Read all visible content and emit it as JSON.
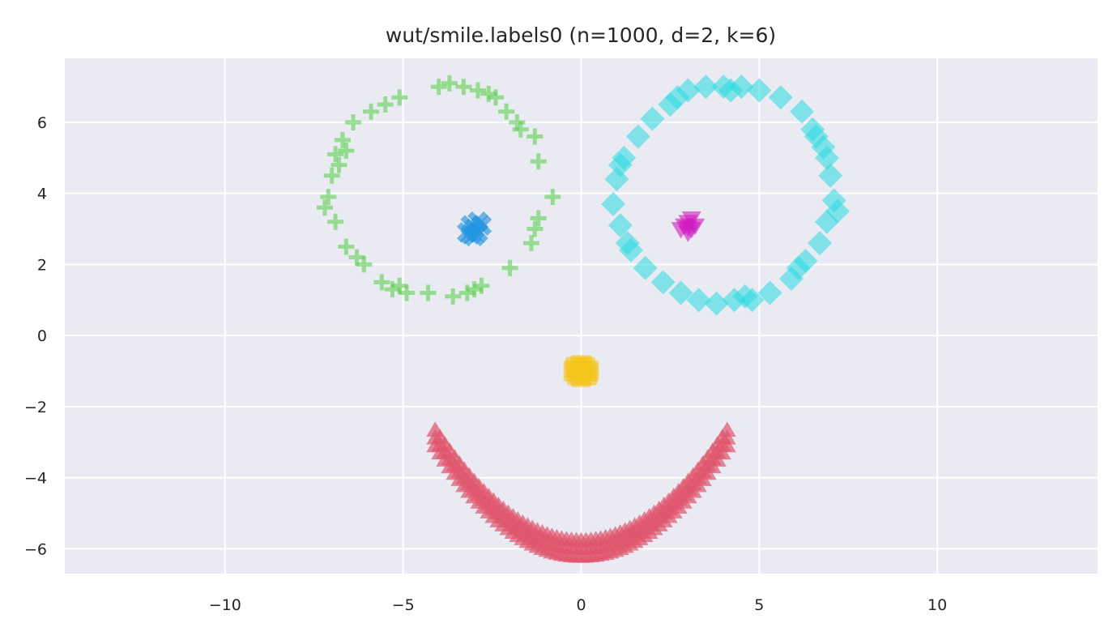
{
  "chart_data": {
    "type": "scatter",
    "title": "wut/smile.labels0 (n=1000, d=2, k=6)",
    "xlabel": "",
    "ylabel": "",
    "xlim": [
      -14.5,
      14.5
    ],
    "ylim": [
      -6.7,
      7.8
    ],
    "xticks": [
      -10,
      -5,
      0,
      5,
      10
    ],
    "yticks": [
      -6,
      -4,
      -2,
      0,
      2,
      4,
      6
    ],
    "xtick_labels": [
      "−10",
      "−5",
      "0",
      "5",
      "10"
    ],
    "ytick_labels": [
      "−6",
      "−4",
      "−2",
      "0",
      "2",
      "4",
      "6"
    ],
    "grid": true,
    "background": "#eaeaf2",
    "series": [
      {
        "marker": "plus",
        "color": "#5bd04e",
        "points": [
          [
            -3.7,
            7.1
          ],
          [
            -3.3,
            7.0
          ],
          [
            -2.9,
            6.9
          ],
          [
            -2.4,
            6.7
          ],
          [
            -2.1,
            6.3
          ],
          [
            -1.8,
            6.0
          ],
          [
            -1.3,
            5.6
          ],
          [
            -1.2,
            4.9
          ],
          [
            -0.8,
            3.9
          ],
          [
            -1.2,
            3.3
          ],
          [
            -1.4,
            2.6
          ],
          [
            -2.0,
            1.9
          ],
          [
            -2.8,
            1.4
          ],
          [
            -3.2,
            1.2
          ],
          [
            -3.6,
            1.1
          ],
          [
            -4.3,
            1.2
          ],
          [
            -4.9,
            1.2
          ],
          [
            -5.1,
            1.4
          ],
          [
            -5.6,
            1.5
          ],
          [
            -6.1,
            2.0
          ],
          [
            -6.6,
            2.5
          ],
          [
            -6.9,
            3.2
          ],
          [
            -7.1,
            3.9
          ],
          [
            -7.0,
            4.5
          ],
          [
            -6.9,
            5.1
          ],
          [
            -6.7,
            5.5
          ],
          [
            -6.4,
            6.0
          ],
          [
            -5.9,
            6.3
          ],
          [
            -5.5,
            6.5
          ],
          [
            -5.1,
            6.7
          ],
          [
            -6.8,
            4.8
          ],
          [
            -7.2,
            3.6
          ],
          [
            -6.3,
            2.2
          ],
          [
            -5.3,
            1.3
          ],
          [
            -3.0,
            1.3
          ],
          [
            -1.7,
            5.8
          ],
          [
            -2.6,
            6.8
          ],
          [
            -4.0,
            7.0
          ],
          [
            -6.6,
            5.2
          ],
          [
            -1.3,
            3.0
          ]
        ]
      },
      {
        "marker": "x",
        "color": "#2495e0",
        "points": [
          [
            -3.1,
            3.1
          ],
          [
            -2.9,
            2.9
          ],
          [
            -3.0,
            3.0
          ],
          [
            -2.8,
            3.1
          ],
          [
            -3.2,
            2.9
          ],
          [
            -3.0,
            2.8
          ],
          [
            -2.9,
            3.2
          ],
          [
            -3.1,
            2.85
          ]
        ]
      },
      {
        "marker": "diamond",
        "color": "#27dbe0",
        "points": [
          [
            3.0,
            6.9
          ],
          [
            3.5,
            7.0
          ],
          [
            4.0,
            7.0
          ],
          [
            4.5,
            7.0
          ],
          [
            5.0,
            6.9
          ],
          [
            5.6,
            6.7
          ],
          [
            6.2,
            6.3
          ],
          [
            6.6,
            5.6
          ],
          [
            6.9,
            5.0
          ],
          [
            7.0,
            4.5
          ],
          [
            7.1,
            3.8
          ],
          [
            6.9,
            3.2
          ],
          [
            6.7,
            2.6
          ],
          [
            6.3,
            2.1
          ],
          [
            5.9,
            1.6
          ],
          [
            5.3,
            1.2
          ],
          [
            4.8,
            1.0
          ],
          [
            4.3,
            1.0
          ],
          [
            3.8,
            0.9
          ],
          [
            3.3,
            1.0
          ],
          [
            2.8,
            1.2
          ],
          [
            2.3,
            1.5
          ],
          [
            1.8,
            1.9
          ],
          [
            1.4,
            2.4
          ],
          [
            1.1,
            3.1
          ],
          [
            0.9,
            3.7
          ],
          [
            1.0,
            4.4
          ],
          [
            1.2,
            5.0
          ],
          [
            1.6,
            5.6
          ],
          [
            2.0,
            6.1
          ],
          [
            2.5,
            6.5
          ],
          [
            6.8,
            5.3
          ],
          [
            7.2,
            3.5
          ],
          [
            6.1,
            1.9
          ],
          [
            4.6,
            1.1
          ],
          [
            1.3,
            2.6
          ],
          [
            1.1,
            4.8
          ],
          [
            2.7,
            6.7
          ],
          [
            4.2,
            6.9
          ],
          [
            6.5,
            5.8
          ]
        ]
      },
      {
        "marker": "triangle-down",
        "color": "#d11abf",
        "points": [
          [
            3.0,
            3.2
          ],
          [
            3.1,
            3.0
          ],
          [
            2.9,
            3.1
          ],
          [
            3.2,
            3.1
          ],
          [
            3.0,
            2.9
          ],
          [
            2.8,
            3.0
          ],
          [
            3.1,
            3.3
          ],
          [
            3.0,
            3.05
          ]
        ]
      },
      {
        "marker": "square",
        "color": "#f5c518",
        "points": [
          [
            0.0,
            -1.0
          ],
          [
            -0.2,
            -1.0
          ],
          [
            0.2,
            -1.0
          ],
          [
            0.0,
            -0.85
          ],
          [
            0.0,
            -1.15
          ],
          [
            -0.15,
            -0.9
          ],
          [
            0.15,
            -1.1
          ],
          [
            -0.1,
            -1.1
          ],
          [
            0.1,
            -0.9
          ]
        ]
      },
      {
        "marker": "triangle-up",
        "color": "#e0566c",
        "curve": {
          "x_from": -4.1,
          "x_to": 4.1,
          "steps": 60,
          "y_vertex": -6.0,
          "a": 0.185,
          "spread": 0.22
        }
      }
    ]
  }
}
